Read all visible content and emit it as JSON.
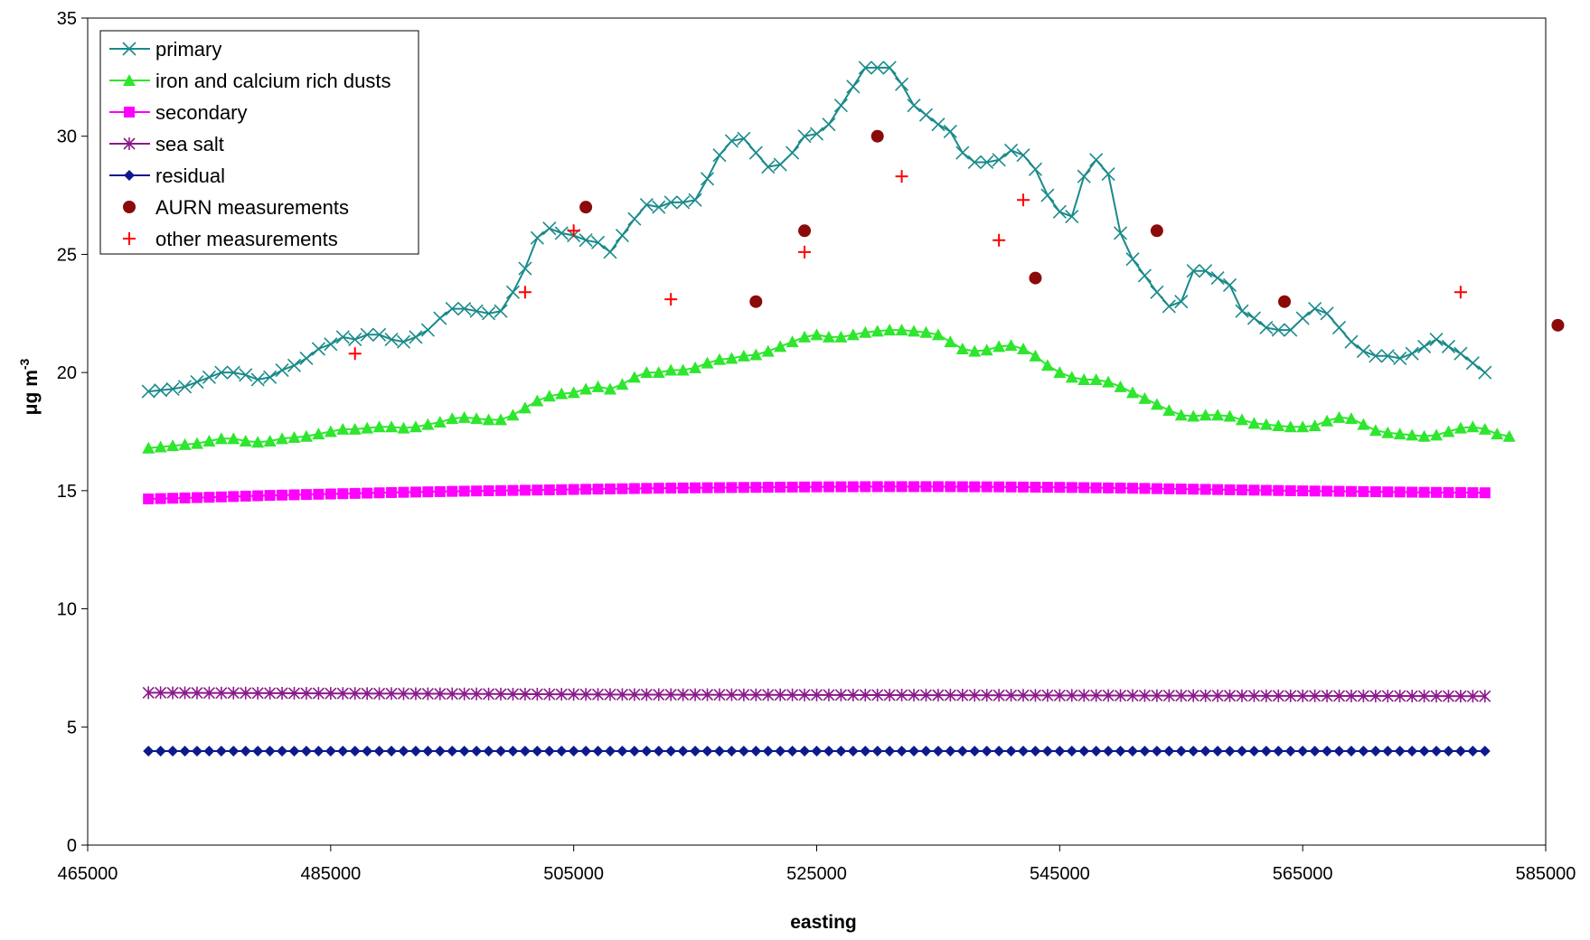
{
  "chart_data": {
    "type": "line",
    "title": "",
    "xlabel": "easting",
    "ylabel": "μg m",
    "ylabel_superscript": "-3",
    "xlim": [
      465000,
      585000
    ],
    "ylim": [
      0,
      35
    ],
    "x_ticks": [
      465000,
      485000,
      505000,
      525000,
      545000,
      565000,
      585000
    ],
    "y_ticks": [
      0,
      5,
      10,
      15,
      20,
      25,
      30,
      35
    ],
    "grid": false,
    "legend_position": "top-left",
    "series": [
      {
        "name": "primary",
        "color": "#1a8a8a",
        "marker": "x",
        "line": true,
        "points": [
          [
            470000,
            19.2
          ],
          [
            471000,
            19.25
          ],
          [
            472000,
            19.3
          ],
          [
            473000,
            19.4
          ],
          [
            474000,
            19.6
          ],
          [
            475000,
            19.8
          ],
          [
            476000,
            20.0
          ],
          [
            477000,
            20.0
          ],
          [
            478000,
            19.9
          ],
          [
            479000,
            19.7
          ],
          [
            480000,
            19.8
          ],
          [
            481000,
            20.1
          ],
          [
            482000,
            20.3
          ],
          [
            483000,
            20.6
          ],
          [
            484000,
            21.0
          ],
          [
            485000,
            21.2
          ],
          [
            486000,
            21.5
          ],
          [
            487000,
            21.4
          ],
          [
            488000,
            21.6
          ],
          [
            489000,
            21.6
          ],
          [
            490000,
            21.4
          ],
          [
            491000,
            21.3
          ],
          [
            492000,
            21.5
          ],
          [
            493000,
            21.8
          ],
          [
            494000,
            22.3
          ],
          [
            495000,
            22.7
          ],
          [
            496000,
            22.7
          ],
          [
            497000,
            22.6
          ],
          [
            498000,
            22.5
          ],
          [
            499000,
            22.6
          ],
          [
            500000,
            23.4
          ],
          [
            501000,
            24.4
          ],
          [
            502000,
            25.7
          ],
          [
            503000,
            26.1
          ],
          [
            504000,
            25.9
          ],
          [
            505000,
            25.8
          ],
          [
            506000,
            25.6
          ],
          [
            507000,
            25.5
          ],
          [
            508000,
            25.1
          ],
          [
            509000,
            25.8
          ],
          [
            510000,
            26.5
          ],
          [
            511000,
            27.1
          ],
          [
            512000,
            27.0
          ],
          [
            513000,
            27.2
          ],
          [
            514000,
            27.2
          ],
          [
            515000,
            27.3
          ],
          [
            516000,
            28.2
          ],
          [
            517000,
            29.2
          ],
          [
            518000,
            29.8
          ],
          [
            519000,
            29.9
          ],
          [
            520000,
            29.3
          ],
          [
            521000,
            28.7
          ],
          [
            522000,
            28.8
          ],
          [
            523000,
            29.3
          ],
          [
            524000,
            30.0
          ],
          [
            525000,
            30.1
          ],
          [
            526000,
            30.5
          ],
          [
            527000,
            31.3
          ],
          [
            528000,
            32.1
          ],
          [
            529000,
            32.9
          ],
          [
            530000,
            32.9
          ],
          [
            531000,
            32.9
          ],
          [
            532000,
            32.2
          ],
          [
            533000,
            31.3
          ],
          [
            534000,
            30.9
          ],
          [
            535000,
            30.5
          ],
          [
            536000,
            30.2
          ],
          [
            537000,
            29.3
          ],
          [
            538000,
            28.9
          ],
          [
            539000,
            28.9
          ],
          [
            540000,
            29.0
          ],
          [
            541000,
            29.4
          ],
          [
            542000,
            29.2
          ],
          [
            543000,
            28.6
          ],
          [
            544000,
            27.5
          ],
          [
            545000,
            26.8
          ],
          [
            546000,
            26.6
          ],
          [
            547000,
            28.3
          ],
          [
            548000,
            29.0
          ],
          [
            549000,
            28.4
          ],
          [
            550000,
            25.9
          ],
          [
            551000,
            24.8
          ],
          [
            552000,
            24.1
          ],
          [
            553000,
            23.4
          ],
          [
            554000,
            22.8
          ],
          [
            555000,
            23.0
          ],
          [
            556000,
            24.3
          ],
          [
            557000,
            24.3
          ],
          [
            558000,
            24.0
          ],
          [
            559000,
            23.7
          ],
          [
            560000,
            22.6
          ],
          [
            561000,
            22.3
          ],
          [
            562000,
            21.9
          ],
          [
            563000,
            21.8
          ],
          [
            564000,
            21.8
          ],
          [
            565000,
            22.3
          ],
          [
            566000,
            22.7
          ],
          [
            567000,
            22.5
          ],
          [
            568000,
            21.9
          ],
          [
            569000,
            21.3
          ],
          [
            570000,
            20.9
          ],
          [
            571000,
            20.7
          ],
          [
            572000,
            20.7
          ],
          [
            573000,
            20.6
          ],
          [
            574000,
            20.8
          ],
          [
            575000,
            21.1
          ],
          [
            576000,
            21.4
          ],
          [
            577000,
            21.1
          ],
          [
            578000,
            20.8
          ],
          [
            579000,
            20.4
          ],
          [
            580000,
            20.0
          ]
        ]
      },
      {
        "name": "iron and calcium rich dusts",
        "color": "#2ee62e",
        "marker": "triangle",
        "line": true,
        "points": [
          [
            470000,
            16.8
          ],
          [
            471000,
            16.85
          ],
          [
            472000,
            16.9
          ],
          [
            473000,
            16.95
          ],
          [
            474000,
            17.0
          ],
          [
            475000,
            17.1
          ],
          [
            476000,
            17.2
          ],
          [
            477000,
            17.2
          ],
          [
            478000,
            17.1
          ],
          [
            479000,
            17.05
          ],
          [
            480000,
            17.1
          ],
          [
            481000,
            17.2
          ],
          [
            482000,
            17.25
          ],
          [
            483000,
            17.3
          ],
          [
            484000,
            17.4
          ],
          [
            485000,
            17.5
          ],
          [
            486000,
            17.6
          ],
          [
            487000,
            17.6
          ],
          [
            488000,
            17.65
          ],
          [
            489000,
            17.7
          ],
          [
            490000,
            17.7
          ],
          [
            491000,
            17.65
          ],
          [
            492000,
            17.7
          ],
          [
            493000,
            17.8
          ],
          [
            494000,
            17.9
          ],
          [
            495000,
            18.05
          ],
          [
            496000,
            18.1
          ],
          [
            497000,
            18.05
          ],
          [
            498000,
            18.0
          ],
          [
            499000,
            18.0
          ],
          [
            500000,
            18.2
          ],
          [
            501000,
            18.5
          ],
          [
            502000,
            18.8
          ],
          [
            503000,
            19.0
          ],
          [
            504000,
            19.1
          ],
          [
            505000,
            19.15
          ],
          [
            506000,
            19.3
          ],
          [
            507000,
            19.4
          ],
          [
            508000,
            19.3
          ],
          [
            509000,
            19.5
          ],
          [
            510000,
            19.8
          ],
          [
            511000,
            20.0
          ],
          [
            512000,
            20.0
          ],
          [
            513000,
            20.1
          ],
          [
            514000,
            20.1
          ],
          [
            515000,
            20.2
          ],
          [
            516000,
            20.4
          ],
          [
            517000,
            20.55
          ],
          [
            518000,
            20.6
          ],
          [
            519000,
            20.7
          ],
          [
            520000,
            20.75
          ],
          [
            521000,
            20.9
          ],
          [
            522000,
            21.1
          ],
          [
            523000,
            21.3
          ],
          [
            524000,
            21.5
          ],
          [
            525000,
            21.6
          ],
          [
            526000,
            21.5
          ],
          [
            527000,
            21.5
          ],
          [
            528000,
            21.6
          ],
          [
            529000,
            21.7
          ],
          [
            530000,
            21.75
          ],
          [
            531000,
            21.8
          ],
          [
            532000,
            21.8
          ],
          [
            533000,
            21.75
          ],
          [
            534000,
            21.7
          ],
          [
            535000,
            21.6
          ],
          [
            536000,
            21.3
          ],
          [
            537000,
            21.0
          ],
          [
            538000,
            20.9
          ],
          [
            539000,
            20.95
          ],
          [
            540000,
            21.1
          ],
          [
            541000,
            21.15
          ],
          [
            542000,
            21.0
          ],
          [
            543000,
            20.7
          ],
          [
            544000,
            20.3
          ],
          [
            545000,
            20.0
          ],
          [
            546000,
            19.8
          ],
          [
            547000,
            19.7
          ],
          [
            548000,
            19.7
          ],
          [
            549000,
            19.6
          ],
          [
            550000,
            19.4
          ],
          [
            551000,
            19.15
          ],
          [
            552000,
            18.9
          ],
          [
            553000,
            18.65
          ],
          [
            554000,
            18.4
          ],
          [
            555000,
            18.2
          ],
          [
            556000,
            18.15
          ],
          [
            557000,
            18.2
          ],
          [
            558000,
            18.2
          ],
          [
            559000,
            18.15
          ],
          [
            560000,
            18.0
          ],
          [
            561000,
            17.85
          ],
          [
            562000,
            17.8
          ],
          [
            563000,
            17.75
          ],
          [
            564000,
            17.7
          ],
          [
            565000,
            17.7
          ],
          [
            566000,
            17.75
          ],
          [
            567000,
            17.95
          ],
          [
            568000,
            18.1
          ],
          [
            569000,
            18.05
          ],
          [
            570000,
            17.8
          ],
          [
            571000,
            17.55
          ],
          [
            572000,
            17.45
          ],
          [
            573000,
            17.4
          ],
          [
            574000,
            17.35
          ],
          [
            575000,
            17.3
          ],
          [
            576000,
            17.35
          ],
          [
            577000,
            17.5
          ],
          [
            578000,
            17.65
          ],
          [
            579000,
            17.7
          ],
          [
            580000,
            17.6
          ],
          [
            581000,
            17.4
          ],
          [
            582000,
            17.3
          ]
        ]
      },
      {
        "name": "secondary",
        "color": "#ff00ff",
        "marker": "square",
        "line": true,
        "points": [
          [
            470000,
            14.65
          ],
          [
            475000,
            14.72
          ],
          [
            480000,
            14.8
          ],
          [
            485000,
            14.86
          ],
          [
            490000,
            14.92
          ],
          [
            495000,
            14.97
          ],
          [
            500000,
            15.01
          ],
          [
            505000,
            15.05
          ],
          [
            510000,
            15.09
          ],
          [
            515000,
            15.12
          ],
          [
            520000,
            15.14
          ],
          [
            525000,
            15.16
          ],
          [
            530000,
            15.17
          ],
          [
            535000,
            15.17
          ],
          [
            540000,
            15.16
          ],
          [
            545000,
            15.14
          ],
          [
            550000,
            15.11
          ],
          [
            555000,
            15.07
          ],
          [
            560000,
            15.03
          ],
          [
            565000,
            14.99
          ],
          [
            570000,
            14.96
          ],
          [
            575000,
            14.93
          ],
          [
            580000,
            14.91
          ]
        ]
      },
      {
        "name": "sea salt",
        "color": "#8b1a8b",
        "marker": "star",
        "line": true,
        "points": [
          [
            470000,
            6.45
          ],
          [
            480000,
            6.43
          ],
          [
            490000,
            6.41
          ],
          [
            500000,
            6.39
          ],
          [
            510000,
            6.37
          ],
          [
            520000,
            6.36
          ],
          [
            530000,
            6.35
          ],
          [
            540000,
            6.34
          ],
          [
            550000,
            6.33
          ],
          [
            560000,
            6.32
          ],
          [
            570000,
            6.31
          ],
          [
            580000,
            6.3
          ]
        ]
      },
      {
        "name": "residual",
        "color": "#0d1a8c",
        "marker": "diamond",
        "line": true,
        "points": [
          [
            470000,
            3.98
          ],
          [
            580000,
            3.98
          ]
        ]
      },
      {
        "name": "AURN measurements",
        "color": "#8b0a0a",
        "marker": "circle",
        "line": false,
        "points": [
          [
            506000,
            27.0
          ],
          [
            530000,
            30.0
          ],
          [
            520000,
            23.0
          ],
          [
            524000,
            26.0
          ],
          [
            543000,
            24.0
          ],
          [
            553000,
            26.0
          ],
          [
            563500,
            23.0
          ],
          [
            586000,
            22.0
          ]
        ]
      },
      {
        "name": "other measurements",
        "color": "#ff0000",
        "marker": "plus",
        "line": false,
        "points": [
          [
            487000,
            20.8
          ],
          [
            501000,
            23.4
          ],
          [
            505000,
            26.0
          ],
          [
            513000,
            23.1
          ],
          [
            524000,
            25.1
          ],
          [
            532000,
            28.3
          ],
          [
            540000,
            25.6
          ],
          [
            542000,
            27.3
          ],
          [
            578000,
            23.4
          ]
        ]
      }
    ]
  }
}
